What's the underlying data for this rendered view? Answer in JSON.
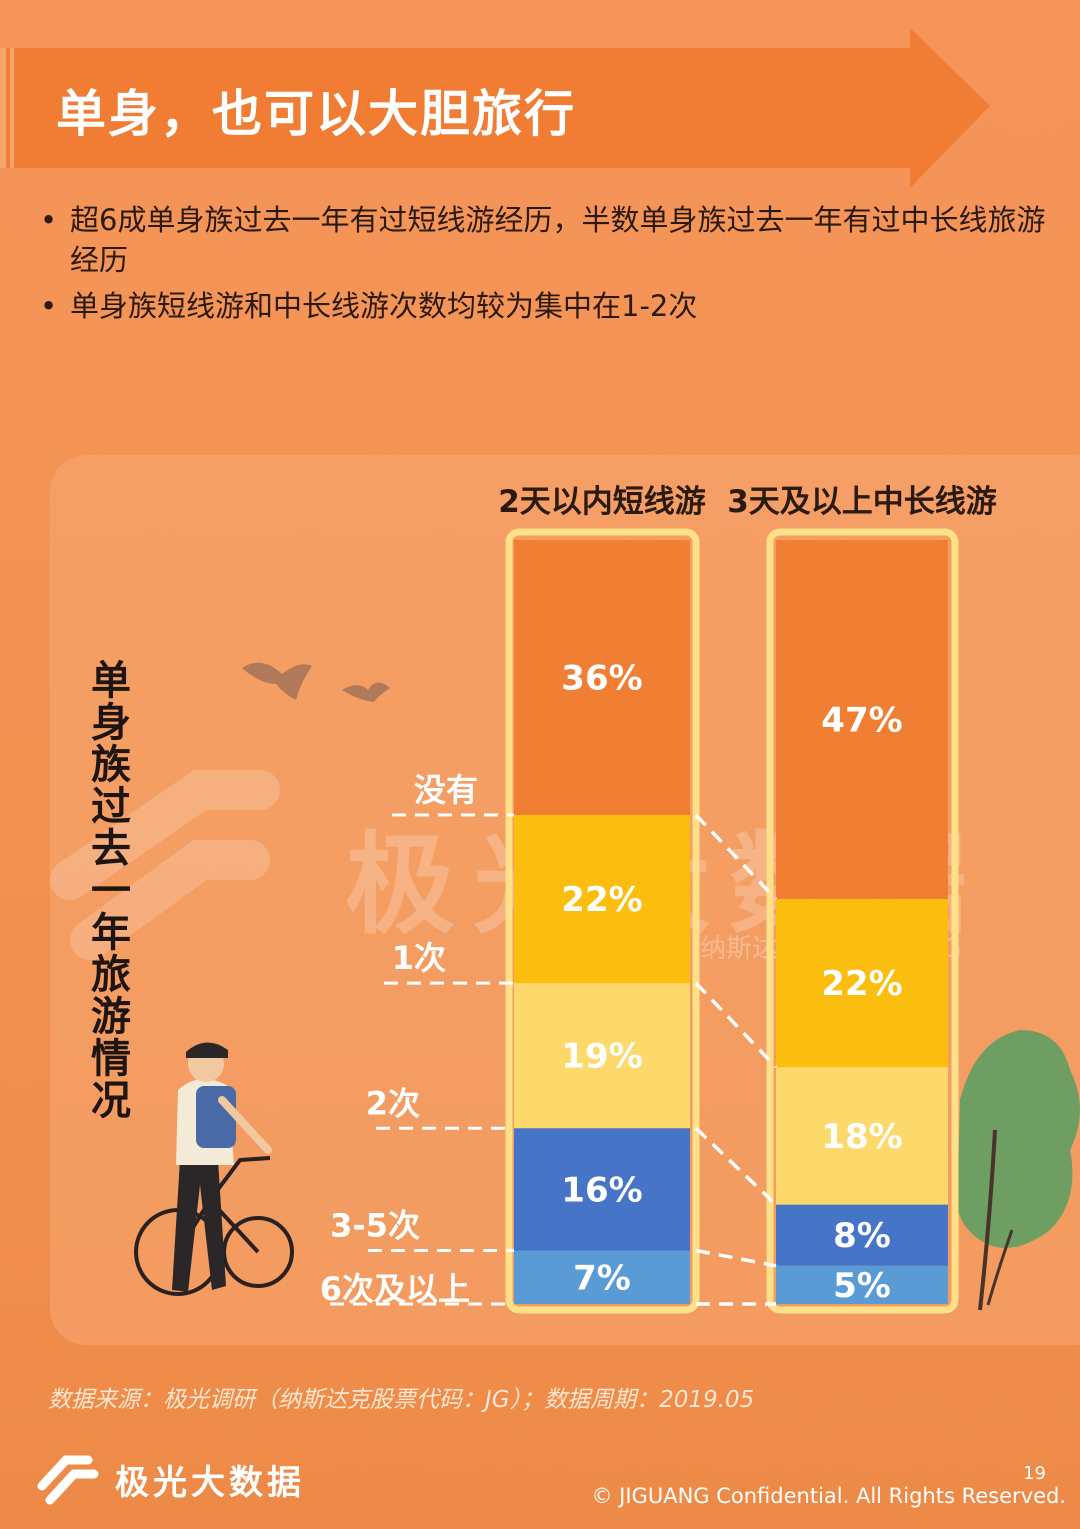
{
  "title": "单身，也可以大胆旅行",
  "bullets": [
    "超6成单身族过去一年有过短线游经历，半数单身族过去一年有过中长线旅游经历",
    "单身族短线游和中长线游次数均较为集中在1-2次"
  ],
  "chart_data": {
    "type": "bar",
    "stacked": true,
    "ylabel": "单身族过去一年旅游情况",
    "categories": [
      "2天以内短线游",
      "3天及以上中长线游"
    ],
    "series": [
      {
        "name": "没有",
        "values": [
          36,
          47
        ],
        "color": "#f07f34"
      },
      {
        "name": "1次",
        "values": [
          22,
          22
        ],
        "color": "#fcbe0e"
      },
      {
        "name": "2次",
        "values": [
          19,
          18
        ],
        "color": "#fdd96b"
      },
      {
        "name": "3-5次",
        "values": [
          16,
          8
        ],
        "color": "#4674c6"
      },
      {
        "name": "6次及以上",
        "values": [
          7,
          5
        ],
        "color": "#5b9bd5"
      }
    ],
    "value_suffix": "%"
  },
  "watermark": {
    "text": "极光大数据",
    "sub": "纳斯达克股票代码：JG"
  },
  "footer": {
    "source": "数据来源：极光调研（纳斯达克股票代码：JG）；数据周期：2019.05",
    "brand": "极光大数据",
    "page": "19",
    "copyright": "© JIGUANG Confidential. All Rights Reserved."
  },
  "colors": {
    "background": "#f29250",
    "banner": "#ee7c33",
    "frame": "#fde088"
  }
}
